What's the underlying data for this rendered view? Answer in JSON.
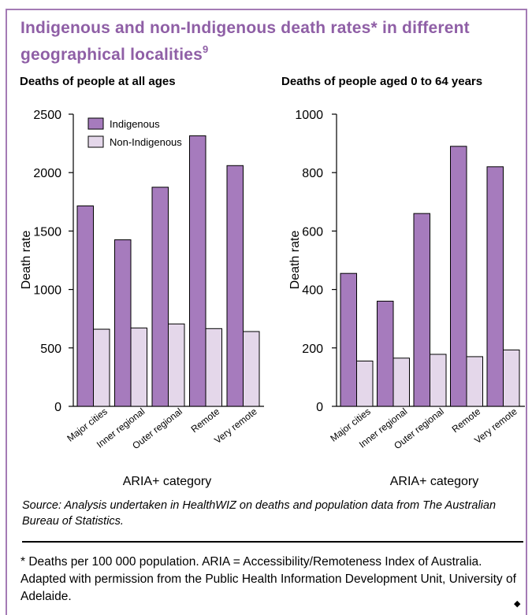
{
  "title": "Indigenous and non-Indigenous death rates* in different geographical localities",
  "title_ref": "9",
  "source": "Source: Analysis undertaken in HealthWIZ on deaths and population data from The Australian Bureau of Statistics.",
  "footnote": "* Deaths per 100 000 population. ARIA = Accessibility/Remoteness Index of Australia. Adapted with permission from the Public Health Information Development Unit, University of Adelaide.",
  "end_mark": "◆",
  "colors": {
    "indigenous": "#a67bbd",
    "non_indigenous": "#e4d7ea",
    "frame": "#a47bb5",
    "title": "#8f5fa6"
  },
  "chart_data": [
    {
      "type": "bar",
      "title": "Deaths of people at all ages",
      "xlabel": "ARIA+ category",
      "ylabel": "Death rate",
      "categories": [
        "Major cities",
        "Inner regional",
        "Outer regional",
        "Remote",
        "Very remote"
      ],
      "series": [
        {
          "name": "Indigenous",
          "values": [
            1715,
            1425,
            1875,
            2315,
            2060
          ]
        },
        {
          "name": "Non-Indigenous",
          "values": [
            660,
            670,
            705,
            665,
            640
          ]
        }
      ],
      "ylim": [
        0,
        2500
      ],
      "yticks": [
        0,
        500,
        1000,
        1500,
        2000,
        2500
      ],
      "legend": "top-left"
    },
    {
      "type": "bar",
      "title": "Deaths of people aged 0 to 64 years",
      "xlabel": "ARIA+ category",
      "ylabel": "Death rate",
      "categories": [
        "Major cities",
        "Inner regional",
        "Outer regional",
        "Remote",
        "Very remote"
      ],
      "series": [
        {
          "name": "Indigenous",
          "values": [
            455,
            360,
            660,
            890,
            820
          ]
        },
        {
          "name": "Non-Indigenous",
          "values": [
            155,
            165,
            178,
            170,
            193
          ]
        }
      ],
      "ylim": [
        0,
        1000
      ],
      "yticks": [
        0,
        200,
        400,
        600,
        800,
        1000
      ]
    }
  ]
}
